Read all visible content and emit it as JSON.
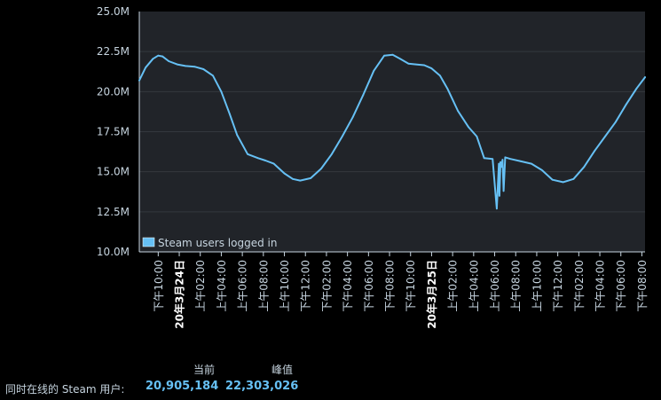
{
  "chart_data": {
    "type": "line",
    "title": "",
    "xlabel": "",
    "ylabel": "",
    "ylim": [
      10000000,
      25000000
    ],
    "yticks": [
      "10.0M",
      "12.5M",
      "15.0M",
      "17.5M",
      "20.0M",
      "22.5M",
      "25.0M"
    ],
    "xtick_labels": [
      "下午10:00",
      "20年3月24日",
      "上午02:00",
      "上午04:00",
      "上午06:00",
      "上午08:00",
      "上午10:00",
      "下午12:00",
      "下午02:00",
      "下午04:00",
      "下午06:00",
      "下午08:00",
      "下午10:00",
      "20年3月25日",
      "上午02:00",
      "上午04:00",
      "上午06:00",
      "上午08:00",
      "上午10:00",
      "下午12:00",
      "下午02:00",
      "下午04:00",
      "下午06:00",
      "下午08:00"
    ],
    "xtick_hours": [
      0,
      2,
      4,
      6,
      8,
      10,
      12,
      14,
      16,
      18,
      20,
      22,
      24,
      26,
      28,
      30,
      32,
      34,
      36,
      38,
      40,
      42,
      44,
      46
    ],
    "xtick_bold": [
      false,
      true,
      false,
      false,
      false,
      false,
      false,
      false,
      false,
      false,
      false,
      false,
      false,
      true,
      false,
      false,
      false,
      false,
      false,
      false,
      false,
      false,
      false,
      false
    ],
    "x_range_hours": [
      -1.8,
      46.3
    ],
    "grid": true,
    "legend_position": "bottom-left",
    "series": [
      {
        "name": "Steam users logged in",
        "color": "#66c0f4",
        "x_hours": [
          -1.8,
          -1.2,
          -0.5,
          0,
          0.4,
          1,
          1.8,
          2.6,
          3.5,
          4.3,
          5.2,
          6,
          6.8,
          7.5,
          8.5,
          9.5,
          10.2,
          11,
          12,
          12.8,
          13.5,
          14.5,
          15.5,
          16.5,
          17.5,
          18.5,
          19.5,
          20.5,
          21.5,
          22.3,
          23,
          23.8,
          24.5,
          25.3,
          26,
          26.8,
          27.5,
          28.5,
          29.5,
          30.3,
          31,
          31.8,
          32.2,
          32.4,
          32.45,
          32.55,
          32.65,
          32.75,
          32.85,
          33,
          33.5,
          34.5,
          35.5,
          36.5,
          37.5,
          38.5,
          39.5,
          40.5,
          41.5,
          42.5,
          43.5,
          44.5,
          45.5,
          46.3
        ],
        "values": [
          20700000,
          21500000,
          22050000,
          22250000,
          22200000,
          21900000,
          21700000,
          21600000,
          21550000,
          21400000,
          21000000,
          20000000,
          18600000,
          17300000,
          16100000,
          15850000,
          15700000,
          15500000,
          14900000,
          14550000,
          14450000,
          14600000,
          15200000,
          16100000,
          17200000,
          18400000,
          19800000,
          21300000,
          22250000,
          22300000,
          22050000,
          21750000,
          21700000,
          21650000,
          21450000,
          21000000,
          20200000,
          18800000,
          17800000,
          17200000,
          15850000,
          15800000,
          12700000,
          15500000,
          13500000,
          15600000,
          15300000,
          15750000,
          13800000,
          15900000,
          15800000,
          15650000,
          15500000,
          15100000,
          14500000,
          14350000,
          14550000,
          15300000,
          16300000,
          17200000,
          18100000,
          19200000,
          20200000,
          20900000
        ]
      }
    ]
  },
  "stats": {
    "label": "同时在线的 Steam 用户:",
    "current_header": "当前",
    "peak_header": "峰值",
    "current": "20,905,184",
    "peak": "22,303,026"
  }
}
